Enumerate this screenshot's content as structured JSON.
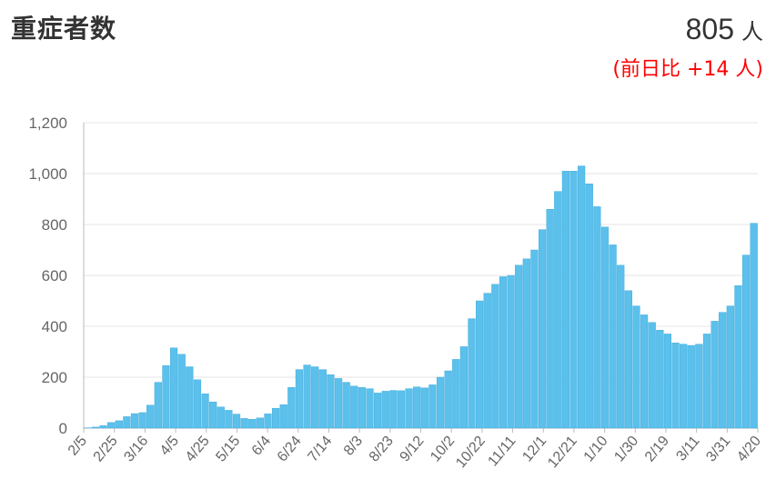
{
  "header": {
    "title": "重症者数",
    "total_value": "805",
    "total_unit": "人",
    "change_prefix": "(前日比",
    "change_value": "+14",
    "change_suffix": "人)"
  },
  "colors": {
    "bar": "#5bc0eb",
    "bar_stroke": "#3aa6d8",
    "grid": "#e6e6e6",
    "axis": "#bbbbbb",
    "change": "#ff0000"
  },
  "chart_data": {
    "type": "bar",
    "ylim": [
      0,
      1200
    ],
    "yticks": [
      "0",
      "200",
      "400",
      "600",
      "800",
      "1,000",
      "1,200"
    ],
    "ytick_values": [
      0,
      200,
      400,
      600,
      800,
      1000,
      1200
    ],
    "x_tick_labels": [
      "2/5",
      "2/25",
      "3/16",
      "4/5",
      "4/25",
      "5/15",
      "6/4",
      "6/24",
      "7/14",
      "8/3",
      "8/23",
      "9/12",
      "10/2",
      "10/22",
      "11/11",
      "12/1",
      "12/21",
      "1/10",
      "1/30",
      "2/19",
      "3/11",
      "3/31",
      "4/20"
    ],
    "series": [
      {
        "values": [
          1,
          4,
          10,
          22,
          29,
          45,
          57,
          61,
          90,
          180,
          246,
          315,
          290,
          241,
          190,
          135,
          103,
          83,
          70,
          55,
          38,
          35,
          40,
          56,
          78,
          92,
          160,
          230,
          248,
          241,
          230,
          210,
          195,
          180,
          165,
          160,
          155,
          138,
          145,
          148,
          147,
          155,
          162,
          158,
          170,
          200,
          225,
          270,
          320,
          430,
          500,
          530,
          565,
          595,
          600,
          640,
          665,
          700,
          780,
          860,
          930,
          1010,
          1010,
          1030,
          960,
          870,
          790,
          720,
          640,
          540,
          480,
          445,
          415,
          385,
          370,
          335,
          330,
          325,
          330,
          370,
          420,
          455,
          480,
          560,
          680,
          805
        ]
      }
    ]
  }
}
